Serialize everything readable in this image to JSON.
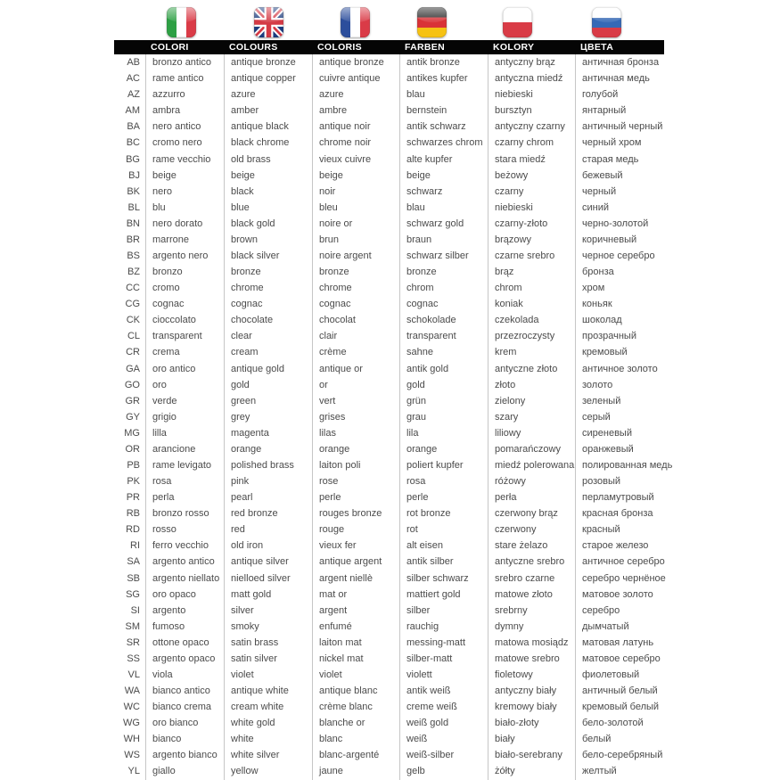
{
  "page": {
    "background": "#ffffff"
  },
  "colors": {
    "header_bg": "#050505",
    "header_text": "#ffffff",
    "body_text": "#4b4b4b",
    "separator": "#c6c6c6"
  },
  "columns": [
    {
      "id": "code",
      "label": ""
    },
    {
      "id": "it",
      "label": "COLORI",
      "flag": "flag-italy-icon"
    },
    {
      "id": "en",
      "label": "COLOURS",
      "flag": "flag-uk-icon"
    },
    {
      "id": "fr",
      "label": "COLORIS",
      "flag": "flag-france-icon"
    },
    {
      "id": "de",
      "label": "FARBEN",
      "flag": "flag-germany-icon"
    },
    {
      "id": "pl",
      "label": "KOLORY",
      "flag": "flag-poland-icon"
    },
    {
      "id": "ru",
      "label": "ЦВЕТА",
      "flag": "flag-russia-icon"
    }
  ],
  "rows": [
    [
      "AB",
      "bronzo antico",
      "antique bronze",
      "antique bronze",
      "antik bronze",
      "antyczny brąz",
      "античная бронза"
    ],
    [
      "AC",
      "rame antico",
      "antique copper",
      "cuivre antique",
      "antikes kupfer",
      "antyczna miedź",
      "античная медь"
    ],
    [
      "AZ",
      "azzurro",
      "azure",
      "azure",
      "blau",
      "niebieski",
      "голубой"
    ],
    [
      "AM",
      "ambra",
      "amber",
      "ambre",
      "bernstein",
      "bursztyn",
      "янтарный"
    ],
    [
      "BA",
      "nero antico",
      "antique black",
      "antique noir",
      "antik schwarz",
      "antyczny czarny",
      "античный черный"
    ],
    [
      "BC",
      "cromo nero",
      "black chrome",
      "chrome noir",
      "schwarzes chrom",
      "czarny chrom",
      "черный хром"
    ],
    [
      "BG",
      "rame vecchio",
      "old brass",
      "vieux cuivre",
      "alte kupfer",
      "stara miedź",
      "старая медь"
    ],
    [
      "BJ",
      "beige",
      "beige",
      "beige",
      "beige",
      "beżowy",
      "бежевый"
    ],
    [
      "BK",
      "nero",
      "black",
      "noir",
      "schwarz",
      "czarny",
      "черный"
    ],
    [
      "BL",
      "blu",
      "blue",
      "bleu",
      "blau",
      "niebieski",
      "синий"
    ],
    [
      "BN",
      "nero dorato",
      "black gold",
      "noire or",
      "schwarz gold",
      "czarny-złoto",
      "черно-золотой"
    ],
    [
      "BR",
      "marrone",
      "brown",
      "brun",
      "braun",
      "brązowy",
      "коричневый"
    ],
    [
      "BS",
      "argento nero",
      "black silver",
      "noire argent",
      "schwarz silber",
      "czarne srebro",
      "черное серебро"
    ],
    [
      "BZ",
      "bronzo",
      "bronze",
      "bronze",
      "bronze",
      "brąz",
      "бронза"
    ],
    [
      "CC",
      "cromo",
      "chrome",
      "chrome",
      "chrom",
      "chrom",
      "хром"
    ],
    [
      "CG",
      "cognac",
      "cognac",
      "cognac",
      "cognac",
      "koniak",
      "коньяк"
    ],
    [
      "CK",
      "cioccolato",
      "chocolate",
      "chocolat",
      "schokolade",
      "czekolada",
      "шоколад"
    ],
    [
      "CL",
      "transparent",
      "clear",
      "clair",
      "transparent",
      "przezroczysty",
      "прозрачный"
    ],
    [
      "CR",
      "crema",
      "cream",
      "crème",
      "sahne",
      "krem",
      "кремовый"
    ],
    [
      "GA",
      "oro antico",
      "antique gold",
      "antique or",
      "antik gold",
      "antyczne złoto",
      "античное золото"
    ],
    [
      "GO",
      "oro",
      "gold",
      "or",
      "gold",
      "złoto",
      "золото"
    ],
    [
      "GR",
      "verde",
      "green",
      "vert",
      "grün",
      "zielony",
      "зеленый"
    ],
    [
      "GY",
      "grigio",
      "grey",
      "grises",
      "grau",
      "szary",
      "серый"
    ],
    [
      "MG",
      "lilla",
      "magenta",
      "lilas",
      "lila",
      "liliowy",
      "сиреневый"
    ],
    [
      "OR",
      "arancione",
      "orange",
      "orange",
      "orange",
      "pomarańczowy",
      "оранжевый"
    ],
    [
      "PB",
      "rame levigato",
      "polished brass",
      "laiton poli",
      "poliert kupfer",
      "miedź polerowana",
      "полированная медь"
    ],
    [
      "PK",
      "rosa",
      "pink",
      "rose",
      "rosa",
      "różowy",
      "розовый"
    ],
    [
      "PR",
      "perla",
      "pearl",
      "perle",
      "perle",
      "perła",
      "перламутровый"
    ],
    [
      "RB",
      "bronzo rosso",
      "red bronze",
      "rouges bronze",
      "rot bronze",
      "czerwony brąz",
      "красная бронза"
    ],
    [
      "RD",
      "rosso",
      "red",
      "rouge",
      "rot",
      "czerwony",
      "красный"
    ],
    [
      "RI",
      "ferro vecchio",
      "old iron",
      "vieux fer",
      "alt eisen",
      "stare żelazo",
      "старое железо"
    ],
    [
      "SA",
      "argento antico",
      "antique silver",
      "antique argent",
      "antik silber",
      "antyczne srebro",
      "античное серебро"
    ],
    [
      "SB",
      "argento niellato",
      "nielloed silver",
      "argent niellè",
      "silber schwarz",
      "srebro czarne",
      "серебро чернёное"
    ],
    [
      "SG",
      "oro opaco",
      "matt gold",
      "mat or",
      "mattiert gold",
      "matowe złoto",
      "матовое золото"
    ],
    [
      "SI",
      "argento",
      "silver",
      "argent",
      "silber",
      "srebrny",
      "серебро"
    ],
    [
      "SM",
      "fumoso",
      "smoky",
      "enfumé",
      "rauchig",
      "dymny",
      "дымчатый"
    ],
    [
      "SR",
      "ottone opaco",
      "satin brass",
      "laiton mat",
      "messing-matt",
      "matowa mosiądz",
      "матовая латунь"
    ],
    [
      "SS",
      "argento opaco",
      "satin silver",
      "nickel mat",
      "silber-matt",
      "matowe srebro",
      "матовое серебро"
    ],
    [
      "VL",
      "viola",
      "violet",
      "violet",
      "violett",
      "fioletowy",
      "фиолетовый"
    ],
    [
      "WA",
      "bianco antico",
      "antique white",
      "antique blanc",
      "antik weiß",
      "antyczny biały",
      "античный белый"
    ],
    [
      "WC",
      "bianco crema",
      "cream white",
      "crème blanc",
      "creme weiß",
      "kremowy biały",
      "кремовый белый"
    ],
    [
      "WG",
      "oro bianco",
      "white gold",
      "blanche or",
      "weiß gold",
      "biało-złoty",
      "бело-золотой"
    ],
    [
      "WH",
      "bianco",
      "white",
      "blanc",
      "weiß",
      "biały",
      "белый"
    ],
    [
      "WS",
      "argento bianco",
      "white silver",
      "blanc-argenté",
      "weiß-silber",
      "biało-serebrany",
      "бело-серебряный"
    ],
    [
      "YL",
      "giallo",
      "yellow",
      "jaune",
      "gelb",
      "żółty",
      "желтый"
    ]
  ]
}
